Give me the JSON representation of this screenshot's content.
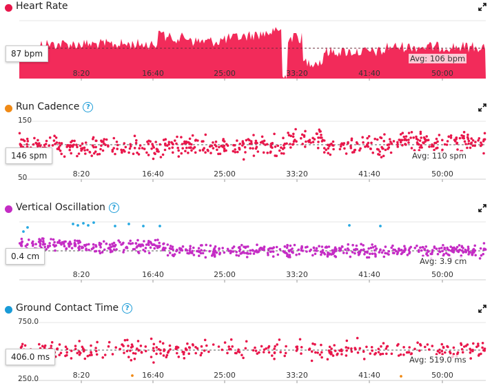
{
  "x_ticks": [
    "8:20",
    "16:40",
    "25:00",
    "33:20",
    "41:40",
    "50:00"
  ],
  "panels": [
    {
      "id": "heart_rate",
      "title": "Heart Rate",
      "dot_color": "#e8174b",
      "has_help": false,
      "callout": "87 bpm",
      "avg_label": "Avg: 106 bpm",
      "y_labels": [],
      "series_color": "#f22b5a",
      "chart_type": "area"
    },
    {
      "id": "run_cadence",
      "title": "Run Cadence",
      "dot_color": "#f08a16",
      "has_help": true,
      "callout": "146 spm",
      "avg_label": "Avg: 110 spm",
      "y_labels": [
        "150",
        "50"
      ],
      "series_color": "#e8174b",
      "chart_type": "scatter"
    },
    {
      "id": "vertical_oscillation",
      "title": "Vertical Oscillation",
      "dot_color": "#c42cc4",
      "has_help": true,
      "callout": "0.4 cm",
      "avg_label": "Avg: 3.9 cm",
      "y_labels": [],
      "series_color": "#c42cc4",
      "accent_color": "#27a9e1",
      "chart_type": "scatter"
    },
    {
      "id": "ground_contact_time",
      "title": "Ground Contact Time",
      "dot_color": "#1a9bd7",
      "has_help": true,
      "callout": "406.0 ms",
      "avg_label": "Avg: 519.0 ms",
      "y_labels": [
        "750.0",
        "250.0"
      ],
      "series_color": "#e8174b",
      "accent_color": "#f08a16",
      "chart_type": "scatter"
    }
  ],
  "icons": {
    "expand": "expand-arrows-icon",
    "help": "help-question-icon"
  }
}
